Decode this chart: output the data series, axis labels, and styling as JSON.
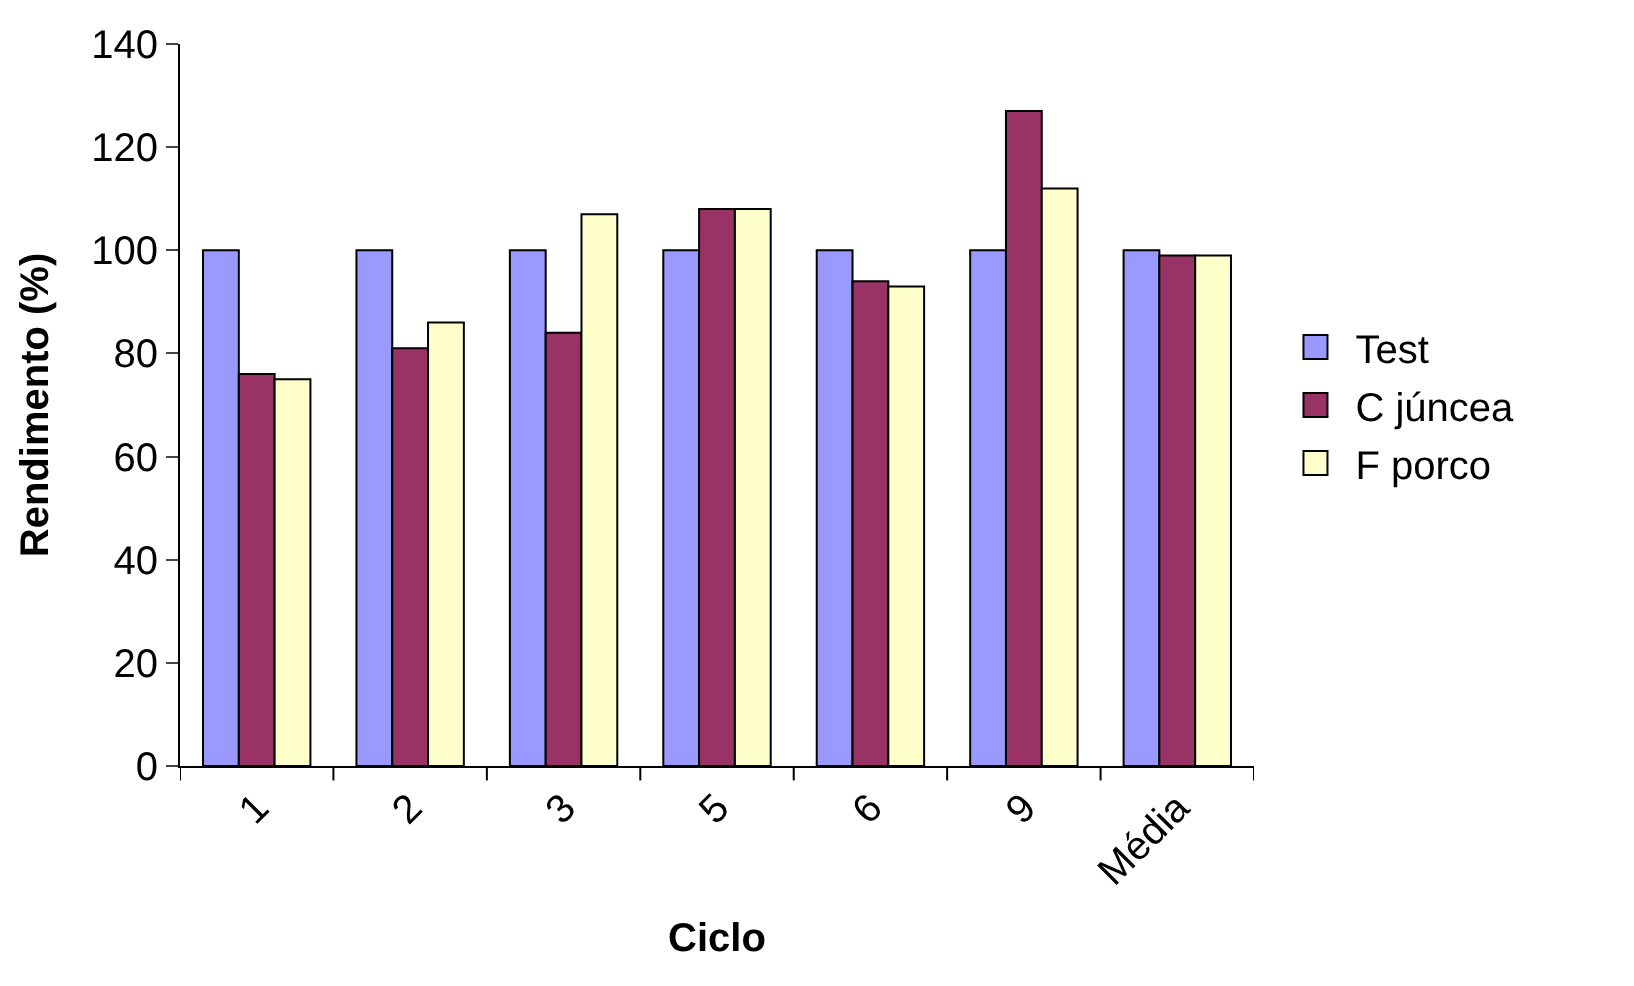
{
  "chart_data": {
    "type": "bar",
    "xlabel": "Ciclo",
    "ylabel": "Rendimento (%)",
    "categories": [
      "1",
      "2",
      "3",
      "5",
      "6",
      "9",
      "Média"
    ],
    "series": [
      {
        "name": "Test",
        "color": "#9999ff",
        "values": [
          100,
          100,
          100,
          100,
          100,
          100,
          100
        ]
      },
      {
        "name": "C júncea",
        "color": "#993366",
        "values": [
          76,
          81,
          84,
          108,
          94,
          127,
          99
        ]
      },
      {
        "name": "F porco",
        "color": "#ffffcc",
        "values": [
          75,
          86,
          107,
          108,
          93,
          112,
          99
        ]
      }
    ],
    "ylim": [
      0,
      140
    ],
    "yticks": [
      0,
      20,
      40,
      60,
      80,
      100,
      120,
      140
    ],
    "legend": "right"
  }
}
